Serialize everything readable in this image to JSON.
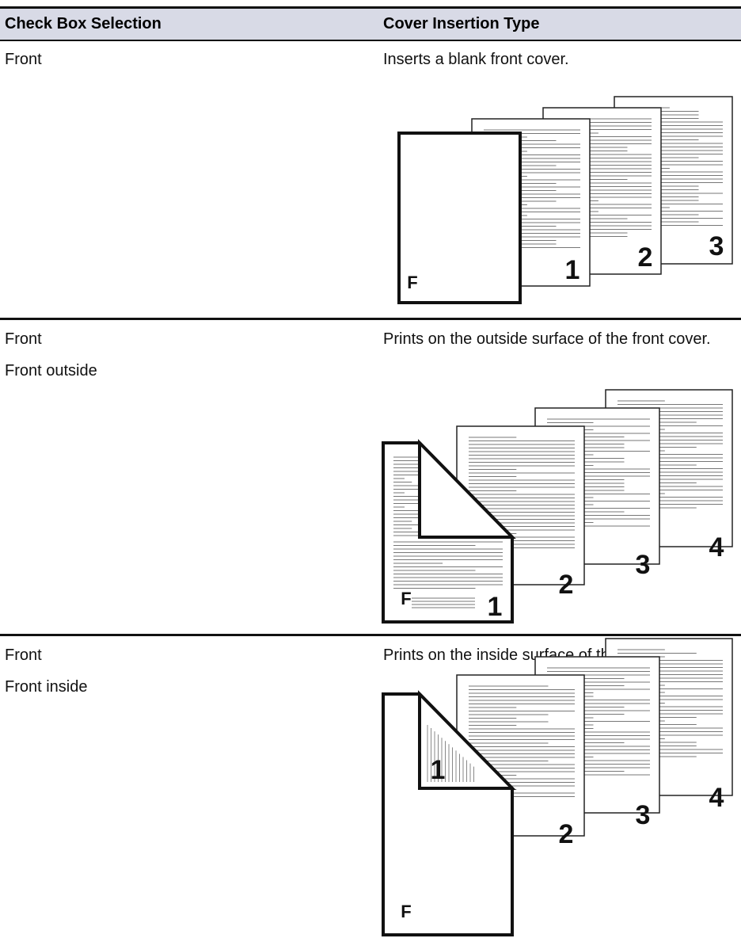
{
  "header": {
    "col1": "Check Box Selection",
    "col2": "Cover Insertion Type"
  },
  "rows": [
    {
      "selection": [
        "Front"
      ],
      "description": "Inserts a blank front cover.",
      "figure": [
        "F",
        "1",
        "2",
        "3"
      ]
    },
    {
      "selection": [
        "Front",
        "Front outside"
      ],
      "description": "Prints on the outside surface of the front cover.",
      "figure": [
        "F",
        "1",
        "2",
        "3",
        "4"
      ]
    },
    {
      "selection": [
        "Front",
        "Front inside"
      ],
      "description": "Prints on the inside surface of the front cover.",
      "figure": [
        "F",
        "1",
        "2",
        "3",
        "4"
      ]
    }
  ]
}
